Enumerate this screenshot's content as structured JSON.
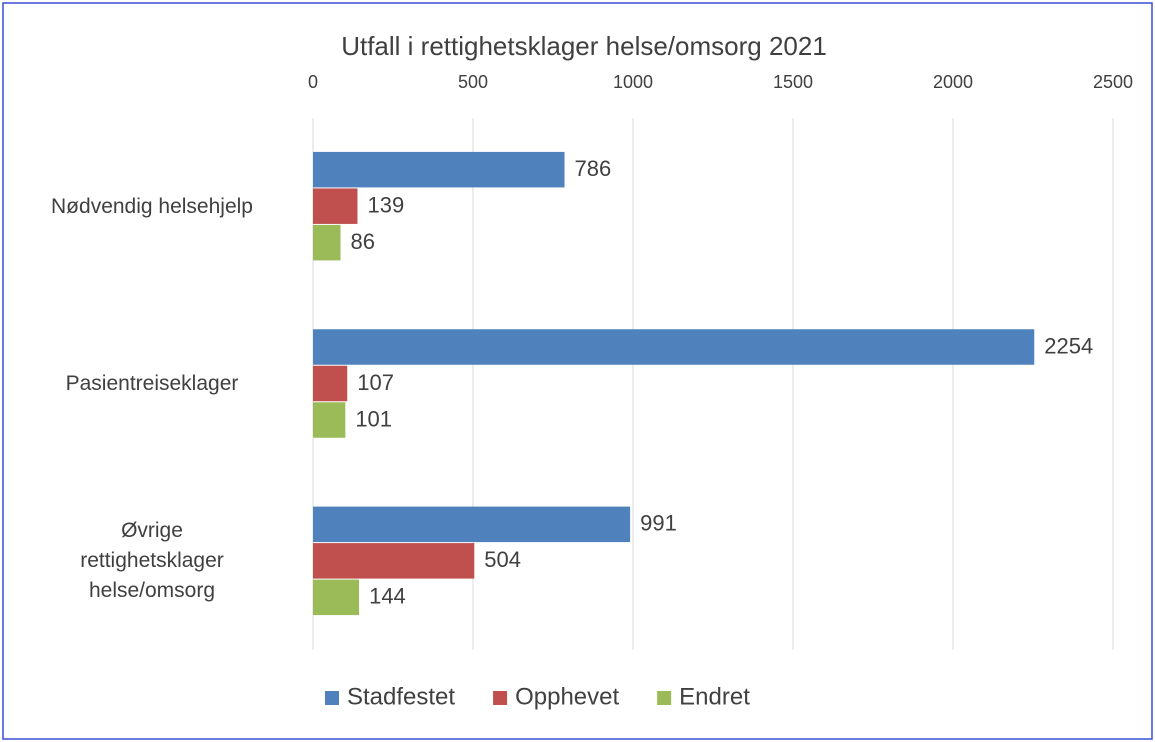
{
  "chart_data": {
    "type": "hbar",
    "title": "Utfall i rettighetsklager helse/omsorg 2021",
    "categories": [
      "Nødvendig helsehjelp",
      "Pasientreiseklager",
      "Øvrige\nrettighetsklager\nhelse/omsorg"
    ],
    "series": [
      {
        "name": "Stadfestet",
        "color": "#4f81bd",
        "values": [
          786,
          2254,
          991
        ]
      },
      {
        "name": "Opphevet",
        "color": "#c0504d",
        "values": [
          139,
          107,
          504
        ]
      },
      {
        "name": "Endret",
        "color": "#9bbb59",
        "values": [
          86,
          101,
          144
        ]
      }
    ],
    "xlim": [
      0,
      2500
    ],
    "xticks": [
      0,
      500,
      1000,
      1500,
      2000,
      2500
    ],
    "grid": true,
    "legend": "bottom"
  }
}
